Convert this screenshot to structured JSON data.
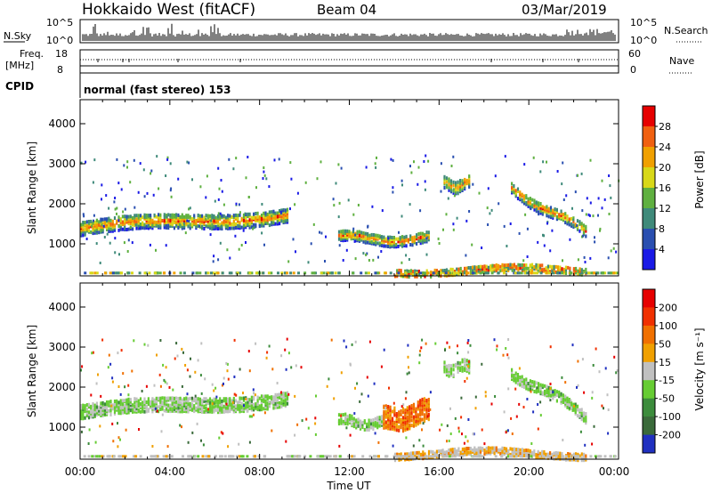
{
  "header": {
    "station": "Hokkaido West (fitACF)",
    "beam": "Beam 04",
    "date": "03/Mar/2019"
  },
  "noise_panel": {
    "left_label": "N.Sky",
    "right_label": "N.Search",
    "left_ticks": [
      "10^5",
      "10^0"
    ],
    "right_ticks": [
      "10^5",
      "10^0"
    ]
  },
  "freq_panel": {
    "label_line1": "Freq.",
    "label_line2": "[MHz]",
    "left_ticks": [
      "18",
      "8"
    ],
    "right_ticks": [
      "60",
      "0"
    ],
    "right_label": "Nave"
  },
  "cpid_panel": {
    "label": "CPID",
    "text": "normal (fast stereo) 153"
  },
  "x_axis": {
    "ticks": [
      "00:00",
      "04:00",
      "08:00",
      "12:00",
      "16:00",
      "20:00",
      "00:00"
    ],
    "label": "Time UT"
  },
  "chart_data": [
    {
      "type": "heatmap",
      "quantity": "power",
      "ylabel": "Slant Range [km]",
      "yticks": [
        1000,
        2000,
        3000,
        4000
      ],
      "ylim": [
        200,
        4600
      ],
      "xlim_hours": [
        0,
        24
      ],
      "colorbar_label": "Power [dB]",
      "colorbar_ticks": [
        "4",
        "8",
        "12",
        "16",
        "20",
        "24",
        "28"
      ],
      "colorbar_colors": [
        "#1a1ae6",
        "#2a4fb0",
        "#3f8a7a",
        "#5fb040",
        "#d8d818",
        "#f0a000",
        "#f06010",
        "#e60000"
      ],
      "echo_regions": [
        {
          "t0": 0,
          "t1": 9.2,
          "range_center": 1400,
          "range_width": 400,
          "range_end_delta": 350
        },
        {
          "t0": 11.5,
          "t1": 15.5,
          "range_center": 1150,
          "range_width": 300,
          "range_end_delta": 0
        },
        {
          "t0": 16.2,
          "t1": 17.3,
          "range_center": 2500,
          "range_width": 350,
          "range_end_delta": 0
        },
        {
          "t0": 19.2,
          "t1": 22.5,
          "range_center": 2400,
          "range_width": 300,
          "range_end_delta": -1100
        },
        {
          "t0": 14.0,
          "t1": 22.5,
          "range_center": 350,
          "range_width": 200,
          "range_end_delta": 0
        }
      ]
    },
    {
      "type": "heatmap",
      "quantity": "velocity",
      "ylabel": "Slant Range [km]",
      "yticks": [
        1000,
        2000,
        3000,
        4000
      ],
      "ylim": [
        200,
        4600
      ],
      "xlim_hours": [
        0,
        24
      ],
      "colorbar_label": "Velocity [m s⁻¹]",
      "colorbar_ticks": [
        "200",
        "100",
        "50",
        "15",
        "-15",
        "-50",
        "-100",
        "-200"
      ],
      "colorbar_colors": [
        "#2030c0",
        "#3a6a3a",
        "#3c8c3c",
        "#66cc33",
        "#c0c0c0",
        "#f0a000",
        "#f07000",
        "#f03000",
        "#e60000"
      ],
      "echo_regions": [
        {
          "t0": 0,
          "t1": 9.2,
          "range_center": 1400,
          "range_width": 400,
          "range_end_delta": 350
        },
        {
          "t0": 11.5,
          "t1": 13.5,
          "range_center": 1150,
          "range_width": 300,
          "range_end_delta": 0
        },
        {
          "t0": 13.5,
          "t1": 15.5,
          "range_center": 1200,
          "range_width": 600,
          "range_end_delta": 200
        },
        {
          "t0": 16.2,
          "t1": 17.3,
          "range_center": 2500,
          "range_width": 350,
          "range_end_delta": 0
        },
        {
          "t0": 19.2,
          "t1": 22.5,
          "range_center": 2400,
          "range_width": 300,
          "range_end_delta": -1100
        },
        {
          "t0": 14.0,
          "t1": 22.5,
          "range_center": 350,
          "range_width": 200,
          "range_end_delta": 0
        }
      ]
    }
  ]
}
